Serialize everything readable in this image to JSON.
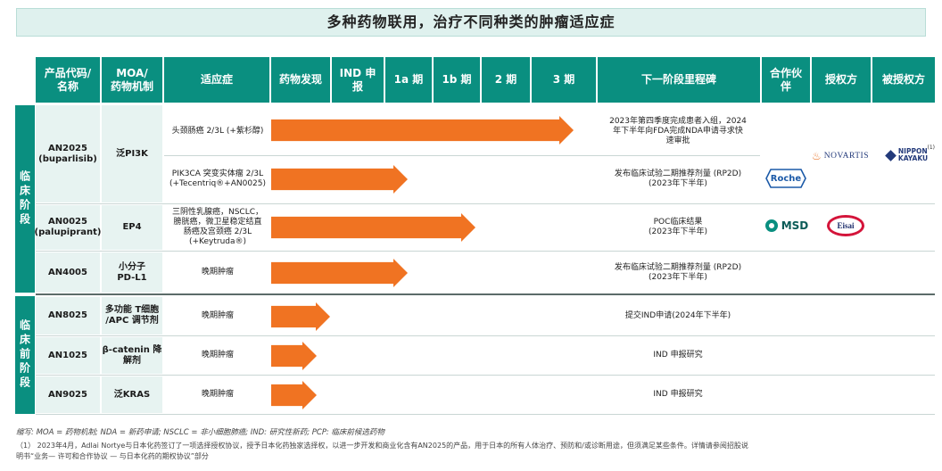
{
  "title": "多种药物联用，治疗不同种类的肿瘤适应症",
  "headers": {
    "code": [
      "产品代码/",
      "名称"
    ],
    "moa": [
      "MOA/",
      "药物机制"
    ],
    "indication": "适应症",
    "discovery": "药物发现",
    "ind": [
      "IND 申",
      "报"
    ],
    "p1a": "1a 期",
    "p1b": "1b 期",
    "p2": "2 期",
    "p3": "3 期",
    "milestone": "下一阶段里程碑",
    "partner": [
      "合作伙",
      "伴"
    ],
    "licensor": "授权方",
    "licensee": "被授权方"
  },
  "stages": {
    "clinical": "临床阶段",
    "preclinical": "临床前阶段"
  },
  "rows": [
    {
      "code": [
        "AN2025",
        "(buparlisib)"
      ],
      "moa": [
        "泛PI3K"
      ],
      "indication": [
        "头颈肠癌 2/3L (+紫杉醇)"
      ],
      "milestone": [
        "2023年第四季度完成患者入组，2024",
        "年下半年向FDA完成NDA申请寻求快",
        "速审批"
      ],
      "progress": 0.93
    },
    {
      "code": [],
      "moa": [],
      "indication": [
        "PIK3CA 突变实体瘤 2/3L",
        "(+Tecentriq®+AN0025)"
      ],
      "milestone": [
        "发布临床试验二期推荐剂量 (RP2D)",
        "(2023年下半年)"
      ],
      "progress": 0.42
    },
    {
      "code": [
        "AN0025",
        "(palupiprant)"
      ],
      "moa": [
        "EP4"
      ],
      "indication": [
        "三阴性乳腺癌，NSCLC，",
        "膀胱癌，微卫星稳定结直",
        "肠癌及宫颈癌 2/3L",
        "(+Keytruda®)"
      ],
      "milestone": [
        "POC临床结果",
        "(2023年下半年)"
      ],
      "progress": 0.63
    },
    {
      "code": [
        "AN4005"
      ],
      "moa": [
        "小分子",
        "PD-L1"
      ],
      "indication": [
        "晚期肿瘤"
      ],
      "milestone": [
        "发布临床试验二期推荐剂量 (RP2D)",
        "(2023年下半年)"
      ],
      "progress": 0.42
    },
    {
      "code": [
        "AN8025"
      ],
      "moa": [
        "多功能 T细胞",
        "/APC 调节剂"
      ],
      "indication": [
        "晚期肿瘤"
      ],
      "milestone": [
        "提交IND申请(2024年下半年)"
      ],
      "progress": 0.18
    },
    {
      "code": [
        "AN1025"
      ],
      "moa": [
        "β-catenin 降",
        "解剂"
      ],
      "indication": [
        "晚期肿瘤"
      ],
      "milestone": [
        "IND 申报研究"
      ],
      "progress": 0.14
    },
    {
      "code": [
        "AN9025"
      ],
      "moa": [
        "泛KRAS"
      ],
      "indication": [
        "晚期肿瘤"
      ],
      "milestone": [
        "IND 申报研究"
      ],
      "progress": 0.14
    }
  ],
  "partners": {
    "novartis": "NOVARTIS",
    "nippon_kayaku": [
      "NIPPON",
      "KAYAKU"
    ],
    "nippon_footnote_mark": "(1)",
    "roche": "Roche",
    "msd": "MSD",
    "eisai": "Eisai"
  },
  "notes": {
    "abbrev": "缩写: MOA = 药物机制; NDA = 新药申请; NSCLC = 非小细胞肺癌; IND: 研究性新药; PCP: 临床前候选药物",
    "footnote_line1": "（1） 2023年4月，Adlai Nortye与日本化药签订了一项选择授权协议，授予日本化药独家选择权，以进一步开发和商业化含有AN2025的产品，用于日本的所有人体治疗、预防和/或诊断用途，但须满足某些条件。详情请参阅招股说",
    "footnote_line2": "明书“业务— 许可和合作协议 — 与日本化药的期权协议”部分"
  },
  "colors": {
    "header_teal": "#0a8f80",
    "bar_orange": "#f07322",
    "cell_light": "#e7f3f1"
  }
}
